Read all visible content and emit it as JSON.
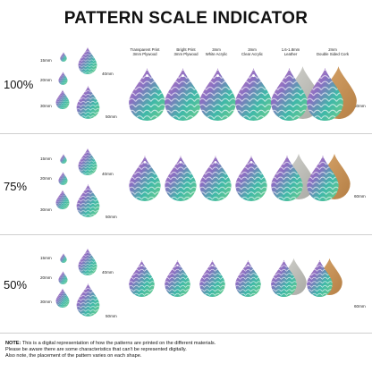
{
  "title": "PATTERN SCALE INDICATOR",
  "columns": [
    {
      "line1": "Transparent Print",
      "line2": "3mm Plywood"
    },
    {
      "line1": "Bright Print",
      "line2": "3mm Plywood"
    },
    {
      "line1": "3mm",
      "line2": "White Acrylic"
    },
    {
      "line1": "3mm",
      "line2": "Clear Acrylic"
    },
    {
      "line1": "1.6-1.8mm",
      "line2": "Leather"
    },
    {
      "line1": "2mm",
      "line2": "Double Sided Cork"
    }
  ],
  "sizes": {
    "s15": "15mm",
    "s20": "20mm",
    "s30": "30mm",
    "s40": "40mm",
    "s50": "50mm",
    "s60": "60mm"
  },
  "rows": [
    {
      "scale": "100%"
    },
    {
      "scale": "75%"
    },
    {
      "scale": "50%"
    }
  ],
  "note": {
    "label": "NOTE:",
    "line1": " This is a digital representation of how the patterns are printed on the different materials.",
    "line2": "Please be aware there are some characteristics that can't be represented digitally.",
    "line3": "Also note, the placement of the pattern varies on each shape."
  },
  "colors": {
    "teal": "#3fb8a8",
    "pink": "#d98bc4",
    "purple": "#8a6fc2",
    "green": "#6fcf8a",
    "wood": "#c08a4e",
    "leather": "#b9b9b4",
    "cork": "#c79358"
  }
}
